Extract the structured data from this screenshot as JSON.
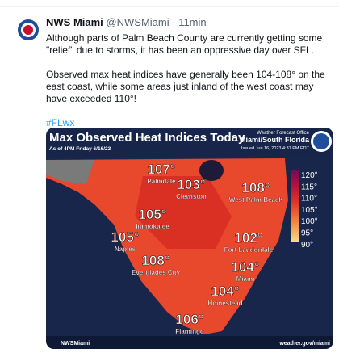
{
  "tweet": {
    "author": "NWS Miami",
    "handle": "@NWSMiami",
    "time": "11min",
    "paragraphs": [
      "Although parts of Palm Beach County are currently getting some \"relief\" due to storms, it has been an oppressive day over SFL.",
      "Observed max heat indices have generally been 104-108° on the east coast, while some areas just inland of the west coast may have exceeded 110°!"
    ],
    "hashtag": "#FLwx"
  },
  "image": {
    "title": "Max Observed Heat Indices Today",
    "subtitle": "As of 4PM Friday 6/16/23",
    "office": "Weather Forecast Office",
    "office_name": "Miami/South Florida",
    "issued": "Issued Jun 16, 2023 4:31 PM EDT",
    "cities": [
      {
        "name": "Palmdale",
        "value": "107°"
      },
      {
        "name": "Clewiston",
        "value": "103°"
      },
      {
        "name": "West Palm Beach",
        "value": "108°"
      },
      {
        "name": "Immokalee",
        "value": "105°"
      },
      {
        "name": "Naples",
        "value": "105°"
      },
      {
        "name": "Fort Lauderdale",
        "value": "102°"
      },
      {
        "name": "Everglades City",
        "value": "108°"
      },
      {
        "name": "Miami",
        "value": "104°"
      },
      {
        "name": "Homestead",
        "value": "104°"
      },
      {
        "name": "Flamingo",
        "value": "106°"
      }
    ],
    "legend": [
      "120°",
      "115°",
      "110°",
      "105°",
      "100°",
      "95°",
      "90°"
    ],
    "footer_handle": "NWSMiami",
    "footer_url": "weather.gov/miami"
  }
}
